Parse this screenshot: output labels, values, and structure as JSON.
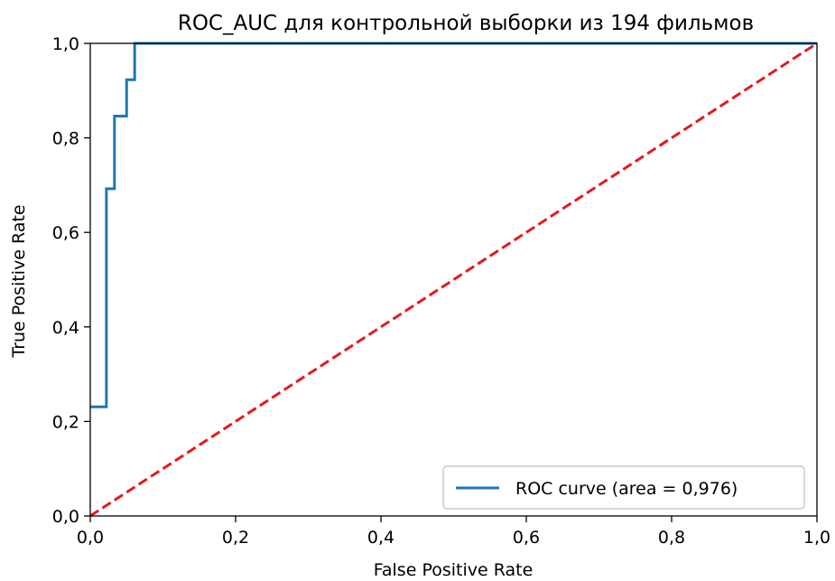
{
  "chart_data": {
    "type": "line",
    "title": "ROC_AUC для контрольной выборки из 194 фильмов",
    "xlabel": "False Positive Rate",
    "ylabel": "True Positive Rate",
    "xlim": [
      0.0,
      1.0
    ],
    "ylim": [
      0.0,
      1.0
    ],
    "x_ticks": [
      "0,0",
      "0,2",
      "0,4",
      "0,6",
      "0,8",
      "1,0"
    ],
    "y_ticks": [
      "0,0",
      "0,2",
      "0,4",
      "0,6",
      "0,8",
      "1,0"
    ],
    "grid": false,
    "legend_position": "lower-right",
    "series": [
      {
        "name": "ROC curve (area = 0,976)",
        "style": "solid",
        "color": "#1f77b4",
        "x": [
          0.0,
          0.0222,
          0.0222,
          0.0333,
          0.0333,
          0.05,
          0.05,
          0.0611,
          0.0611,
          1.0
        ],
        "y": [
          0.2308,
          0.2308,
          0.6923,
          0.6923,
          0.8462,
          0.8462,
          0.9231,
          0.9231,
          1.0,
          1.0
        ]
      },
      {
        "style": "dashed",
        "color": "#e41a1c",
        "x": [
          0.0,
          1.0
        ],
        "y": [
          0.0,
          1.0
        ]
      }
    ]
  }
}
